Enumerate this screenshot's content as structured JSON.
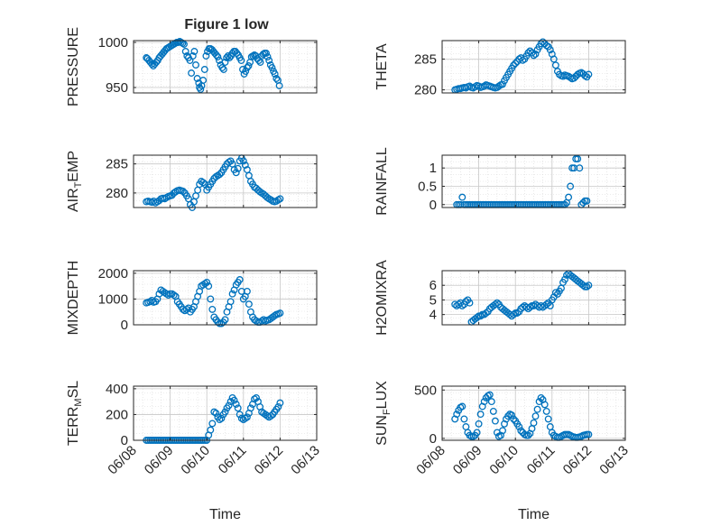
{
  "figure": {
    "title": "Figure 1 low"
  },
  "style": {
    "marker_color": "#0072BD",
    "axis_color": "#262626",
    "grid_color": "#d9d9d9"
  },
  "chart_data": [
    {
      "type": "scatter",
      "ylabel": "PRESSURE",
      "ylim": [
        944,
        1002
      ],
      "yticks": [
        950,
        1000
      ],
      "ytick_labels": [
        "950",
        "1000"
      ],
      "xlim": [
        0,
        5
      ],
      "grid": true,
      "x": [
        0.35,
        0.38,
        0.42,
        0.46,
        0.5,
        0.54,
        0.58,
        0.62,
        0.66,
        0.7,
        0.74,
        0.78,
        0.82,
        0.86,
        0.9,
        0.94,
        0.98,
        1.02,
        1.06,
        1.1,
        1.14,
        1.18,
        1.22,
        1.26,
        1.3,
        1.34,
        1.38,
        1.42,
        1.46,
        1.5,
        1.54,
        1.58,
        1.62,
        1.66,
        1.7,
        1.74,
        1.78,
        1.8,
        1.83,
        1.86,
        1.9,
        1.94,
        1.98,
        2.02,
        2.06,
        2.1,
        2.14,
        2.18,
        2.22,
        2.26,
        2.3,
        2.34,
        2.38,
        2.42,
        2.46,
        2.5,
        2.54,
        2.58,
        2.62,
        2.66,
        2.7,
        2.74,
        2.78,
        2.82,
        2.86,
        2.9,
        2.94,
        2.98,
        3.02,
        3.06,
        3.1,
        3.14,
        3.18,
        3.22,
        3.26,
        3.3,
        3.34,
        3.38,
        3.42,
        3.46,
        3.5,
        3.54,
        3.58,
        3.62,
        3.66,
        3.7,
        3.74,
        3.78,
        3.82,
        3.86,
        3.9,
        3.94,
        3.98
      ],
      "y": [
        983,
        982,
        980,
        978,
        976,
        974,
        976,
        978,
        980,
        983,
        985,
        987,
        989,
        991,
        993,
        994,
        995,
        996,
        997,
        998,
        999,
        1000,
        1000,
        1001,
        1000,
        999,
        998,
        990,
        985,
        983,
        980,
        966,
        985,
        990,
        975,
        960,
        955,
        950,
        948,
        952,
        958,
        970,
        985,
        990,
        993,
        993,
        992,
        990,
        988,
        986,
        984,
        980,
        975,
        972,
        970,
        978,
        983,
        985,
        983,
        985,
        988,
        990,
        990,
        988,
        986,
        983,
        980,
        970,
        965,
        968,
        972,
        974,
        978,
        984,
        985,
        986,
        985,
        982,
        980,
        978,
        985,
        987,
        988,
        988,
        984,
        980,
        975,
        972,
        968,
        965,
        960,
        958,
        952
      ]
    },
    {
      "type": "scatter",
      "ylabel": "THETA",
      "ylim": [
        279.5,
        288
      ],
      "yticks": [
        280,
        285
      ],
      "ytick_labels": [
        "280",
        "285"
      ],
      "xlim": [
        0,
        5
      ],
      "grid": true,
      "x": [
        0.35,
        0.4,
        0.45,
        0.5,
        0.55,
        0.6,
        0.65,
        0.7,
        0.75,
        0.8,
        0.85,
        0.9,
        0.95,
        1.0,
        1.05,
        1.1,
        1.15,
        1.2,
        1.25,
        1.3,
        1.35,
        1.4,
        1.45,
        1.5,
        1.55,
        1.6,
        1.65,
        1.7,
        1.75,
        1.8,
        1.85,
        1.9,
        1.95,
        2.0,
        2.05,
        2.1,
        2.15,
        2.2,
        2.25,
        2.3,
        2.35,
        2.4,
        2.45,
        2.5,
        2.55,
        2.6,
        2.65,
        2.7,
        2.75,
        2.8,
        2.85,
        2.9,
        2.95,
        3.0,
        3.05,
        3.1,
        3.15,
        3.2,
        3.25,
        3.3,
        3.35,
        3.4,
        3.45,
        3.5,
        3.55,
        3.6,
        3.65,
        3.7,
        3.75,
        3.8,
        3.85,
        3.9,
        3.95,
        4.0
      ],
      "y": [
        280.0,
        280.1,
        280.2,
        280.2,
        280.3,
        280.4,
        280.3,
        280.5,
        280.6,
        280.4,
        280.3,
        280.5,
        280.7,
        280.6,
        280.4,
        280.5,
        280.6,
        280.8,
        280.7,
        280.6,
        280.5,
        280.4,
        280.3,
        280.4,
        280.6,
        280.8,
        280.9,
        281.5,
        282.0,
        282.5,
        283.0,
        283.5,
        284.0,
        284.3,
        284.6,
        285.0,
        285.2,
        284.8,
        285.0,
        285.5,
        286.0,
        286.3,
        286.0,
        285.6,
        285.8,
        286.5,
        287.0,
        287.5,
        287.8,
        287.5,
        287.2,
        287.0,
        286.5,
        285.8,
        285.0,
        284.0,
        283.0,
        282.5,
        282.3,
        282.2,
        282.4,
        282.3,
        282.2,
        282.0,
        281.8,
        281.9,
        282.2,
        282.5,
        282.7,
        282.8,
        282.6,
        282.3,
        282.1,
        282.5
      ]
    },
    {
      "type": "scatter",
      "ylabel": "AIR_TEMP",
      "ylim": [
        277.5,
        286.5
      ],
      "yticks": [
        280,
        285
      ],
      "ytick_labels": [
        "280",
        "285"
      ],
      "xlim": [
        0,
        5
      ],
      "grid": true,
      "x": [
        0.35,
        0.4,
        0.45,
        0.5,
        0.55,
        0.6,
        0.65,
        0.7,
        0.75,
        0.8,
        0.85,
        0.9,
        0.95,
        1.0,
        1.05,
        1.1,
        1.15,
        1.2,
        1.25,
        1.3,
        1.35,
        1.4,
        1.45,
        1.5,
        1.55,
        1.6,
        1.65,
        1.7,
        1.75,
        1.8,
        1.85,
        1.9,
        1.95,
        2.0,
        2.05,
        2.1,
        2.15,
        2.2,
        2.25,
        2.3,
        2.35,
        2.4,
        2.45,
        2.5,
        2.55,
        2.6,
        2.65,
        2.7,
        2.75,
        2.8,
        2.85,
        2.9,
        2.95,
        3.0,
        3.05,
        3.1,
        3.15,
        3.2,
        3.25,
        3.3,
        3.35,
        3.4,
        3.45,
        3.5,
        3.55,
        3.6,
        3.65,
        3.7,
        3.75,
        3.8,
        3.85,
        3.9,
        3.95,
        4.0
      ],
      "y": [
        278.5,
        278.6,
        278.5,
        278.4,
        278.6,
        278.3,
        278.5,
        278.7,
        279.0,
        279.1,
        279.0,
        279.2,
        279.4,
        279.5,
        279.6,
        280.0,
        280.2,
        280.4,
        280.5,
        280.4,
        280.3,
        280.0,
        279.5,
        279.0,
        278.0,
        277.5,
        278.5,
        279.5,
        280.5,
        281.5,
        282.0,
        281.8,
        281.5,
        280.5,
        281.0,
        281.5,
        282.0,
        282.5,
        282.8,
        283.0,
        283.2,
        283.5,
        284.0,
        284.5,
        285.0,
        285.3,
        285.5,
        285.0,
        284.0,
        283.5,
        284.2,
        285.5,
        286.0,
        285.5,
        284.8,
        284.0,
        283.0,
        282.0,
        281.5,
        281.0,
        280.8,
        280.5,
        280.2,
        280.0,
        279.8,
        279.5,
        279.2,
        279.0,
        278.8,
        278.6,
        278.5,
        278.6,
        278.8,
        279.0
      ]
    },
    {
      "type": "scatter",
      "ylabel": "RAINFALL",
      "ylim": [
        -0.08,
        1.35
      ],
      "yticks": [
        0,
        0.5,
        1
      ],
      "ytick_labels": [
        "0",
        "0.5",
        "1"
      ],
      "xlim": [
        0,
        5
      ],
      "grid": true,
      "x": [
        0.4,
        0.45,
        0.5,
        0.55,
        0.6,
        0.65,
        0.7,
        0.75,
        0.8,
        0.85,
        0.9,
        0.95,
        1.0,
        1.05,
        1.1,
        1.15,
        1.2,
        1.25,
        1.3,
        1.35,
        1.4,
        1.45,
        1.5,
        1.55,
        1.6,
        1.65,
        1.7,
        1.75,
        1.8,
        1.85,
        1.9,
        1.95,
        2.0,
        2.05,
        2.1,
        2.15,
        2.2,
        2.25,
        2.3,
        2.35,
        2.4,
        2.45,
        2.5,
        2.55,
        2.6,
        2.65,
        2.7,
        2.75,
        2.8,
        2.85,
        2.9,
        2.95,
        3.0,
        3.05,
        3.1,
        3.15,
        3.2,
        3.25,
        3.3,
        3.35,
        3.4,
        3.45,
        3.5,
        3.55,
        3.6,
        3.65,
        3.7,
        3.75,
        3.8,
        3.85,
        3.9,
        3.95
      ],
      "y": [
        0,
        0,
        0,
        0.2,
        0,
        0,
        0,
        0,
        0,
        0,
        0,
        0,
        0,
        0,
        0,
        0,
        0,
        0,
        0,
        0,
        0,
        0,
        0,
        0,
        0,
        0,
        0,
        0,
        0,
        0,
        0,
        0,
        0,
        0,
        0,
        0,
        0,
        0,
        0,
        0,
        0,
        0,
        0,
        0,
        0,
        0,
        0,
        0,
        0,
        0,
        0,
        0,
        0,
        0,
        0,
        0,
        0,
        0,
        0,
        0,
        0.05,
        0.2,
        0.5,
        1.0,
        1.0,
        1.25,
        1.25,
        1.0,
        0,
        0.05,
        0.1,
        0.1
      ]
    },
    {
      "type": "scatter",
      "ylabel": "MIXDEPTH",
      "ylim": [
        0,
        2100
      ],
      "yticks": [
        0,
        1000,
        2000
      ],
      "ytick_labels": [
        "0",
        "1000",
        "2000"
      ],
      "xlim": [
        0,
        5
      ],
      "grid": true,
      "x": [
        0.35,
        0.4,
        0.45,
        0.5,
        0.55,
        0.6,
        0.65,
        0.7,
        0.75,
        0.8,
        0.85,
        0.9,
        0.95,
        1.0,
        1.05,
        1.1,
        1.15,
        1.2,
        1.25,
        1.3,
        1.35,
        1.4,
        1.45,
        1.5,
        1.55,
        1.6,
        1.65,
        1.7,
        1.75,
        1.8,
        1.85,
        1.9,
        1.95,
        2.0,
        2.05,
        2.1,
        2.15,
        2.2,
        2.25,
        2.3,
        2.35,
        2.4,
        2.45,
        2.5,
        2.55,
        2.6,
        2.65,
        2.7,
        2.75,
        2.8,
        2.85,
        2.9,
        2.95,
        3.0,
        3.05,
        3.1,
        3.15,
        3.2,
        3.25,
        3.3,
        3.35,
        3.4,
        3.45,
        3.5,
        3.55,
        3.6,
        3.65,
        3.7,
        3.75,
        3.8,
        3.85,
        3.9,
        3.95,
        4.0
      ],
      "y": [
        850,
        870,
        900,
        950,
        880,
        900,
        1000,
        1200,
        1350,
        1300,
        1250,
        1200,
        1150,
        1200,
        1200,
        1150,
        1100,
        900,
        800,
        700,
        600,
        550,
        600,
        650,
        500,
        600,
        700,
        900,
        1100,
        1300,
        1500,
        1550,
        1600,
        1650,
        1500,
        1000,
        600,
        300,
        200,
        100,
        50,
        50,
        100,
        200,
        500,
        700,
        900,
        1200,
        1350,
        1550,
        1650,
        1750,
        1300,
        1000,
        1100,
        1300,
        800,
        500,
        300,
        200,
        150,
        100,
        100,
        150,
        200,
        150,
        180,
        200,
        250,
        300,
        350,
        400,
        420,
        450
      ]
    },
    {
      "type": "scatter",
      "ylabel": "H2OMIXRA",
      "ylim": [
        3.3,
        7.0
      ],
      "yticks": [
        4,
        5,
        6
      ],
      "ytick_labels": [
        "4",
        "5",
        "6"
      ],
      "xlim": [
        0,
        5
      ],
      "grid": true,
      "x": [
        0.35,
        0.4,
        0.45,
        0.5,
        0.55,
        0.6,
        0.65,
        0.7,
        0.75,
        0.8,
        0.85,
        0.9,
        0.95,
        1.0,
        1.05,
        1.1,
        1.15,
        1.2,
        1.25,
        1.3,
        1.35,
        1.4,
        1.45,
        1.5,
        1.55,
        1.6,
        1.65,
        1.7,
        1.75,
        1.8,
        1.85,
        1.9,
        1.95,
        2.0,
        2.05,
        2.1,
        2.15,
        2.2,
        2.25,
        2.3,
        2.35,
        2.4,
        2.45,
        2.5,
        2.55,
        2.6,
        2.65,
        2.7,
        2.75,
        2.8,
        2.85,
        2.9,
        2.95,
        3.0,
        3.05,
        3.1,
        3.15,
        3.2,
        3.25,
        3.3,
        3.35,
        3.4,
        3.45,
        3.5,
        3.55,
        3.6,
        3.65,
        3.7,
        3.75,
        3.8,
        3.85,
        3.9,
        3.95,
        4.0
      ],
      "y": [
        4.7,
        4.6,
        4.7,
        4.8,
        4.6,
        4.7,
        4.9,
        5.0,
        4.8,
        3.5,
        3.6,
        3.7,
        3.8,
        3.9,
        3.9,
        4.0,
        4.0,
        4.1,
        4.2,
        4.4,
        4.5,
        4.6,
        4.7,
        4.8,
        4.7,
        4.5,
        4.4,
        4.3,
        4.2,
        4.1,
        4.0,
        3.9,
        4.0,
        4.1,
        4.1,
        4.2,
        4.4,
        4.5,
        4.6,
        4.5,
        4.4,
        4.5,
        4.6,
        4.6,
        4.7,
        4.6,
        4.5,
        4.6,
        4.5,
        4.6,
        4.7,
        4.8,
        4.6,
        5.0,
        5.2,
        5.5,
        5.4,
        5.6,
        5.8,
        6.2,
        6.4,
        6.7,
        6.8,
        6.7,
        6.6,
        6.5,
        6.4,
        6.3,
        6.2,
        6.1,
        6.0,
        5.9,
        5.9,
        6.0
      ]
    },
    {
      "type": "scatter",
      "ylabel": "TERR_MSL",
      "ylim": [
        0,
        420
      ],
      "yticks": [
        0,
        200,
        400
      ],
      "ytick_labels": [
        "0",
        "200",
        "400"
      ],
      "xlim": [
        0,
        5
      ],
      "grid": true,
      "xticks": [
        0,
        1,
        2,
        3,
        4,
        5
      ],
      "xtick_labels": [
        "06/08",
        "06/09",
        "06/10",
        "06/11",
        "06/12",
        "06/13"
      ],
      "xlabel": "Time",
      "x": [
        0.35,
        0.4,
        0.45,
        0.5,
        0.55,
        0.6,
        0.65,
        0.7,
        0.75,
        0.8,
        0.85,
        0.9,
        0.95,
        1.0,
        1.05,
        1.1,
        1.15,
        1.2,
        1.25,
        1.3,
        1.35,
        1.4,
        1.45,
        1.5,
        1.55,
        1.6,
        1.65,
        1.7,
        1.75,
        1.8,
        1.85,
        1.9,
        1.95,
        2.0,
        2.05,
        2.1,
        2.15,
        2.2,
        2.25,
        2.3,
        2.35,
        2.4,
        2.45,
        2.5,
        2.55,
        2.6,
        2.65,
        2.7,
        2.75,
        2.8,
        2.85,
        2.9,
        2.95,
        3.0,
        3.05,
        3.1,
        3.15,
        3.2,
        3.25,
        3.3,
        3.35,
        3.4,
        3.45,
        3.5,
        3.55,
        3.6,
        3.65,
        3.7,
        3.75,
        3.8,
        3.85,
        3.9,
        3.95,
        4.0
      ],
      "y": [
        0,
        0,
        0,
        0,
        0,
        0,
        0,
        0,
        0,
        0,
        0,
        0,
        0,
        0,
        0,
        0,
        0,
        0,
        0,
        0,
        0,
        0,
        0,
        0,
        0,
        0,
        0,
        0,
        0,
        0,
        0,
        0,
        0,
        0,
        40,
        80,
        130,
        220,
        210,
        180,
        160,
        170,
        200,
        220,
        250,
        270,
        300,
        330,
        310,
        280,
        250,
        200,
        170,
        160,
        170,
        180,
        210,
        250,
        280,
        320,
        330,
        300,
        260,
        220,
        210,
        200,
        190,
        180,
        190,
        200,
        220,
        240,
        260,
        290
      ]
    },
    {
      "type": "scatter",
      "ylabel": "SUN_FLUX",
      "ylim": [
        -20,
        540
      ],
      "yticks": [
        0,
        500
      ],
      "ytick_labels": [
        "0",
        "500"
      ],
      "xlim": [
        0,
        5
      ],
      "grid": true,
      "xticks": [
        0,
        1,
        2,
        3,
        4,
        5
      ],
      "xtick_labels": [
        "06/08",
        "06/09",
        "06/10",
        "06/11",
        "06/12",
        "06/13"
      ],
      "xlabel": "Time",
      "x": [
        0.35,
        0.4,
        0.45,
        0.5,
        0.55,
        0.6,
        0.65,
        0.7,
        0.75,
        0.8,
        0.85,
        0.9,
        0.95,
        1.0,
        1.05,
        1.1,
        1.15,
        1.2,
        1.25,
        1.3,
        1.35,
        1.4,
        1.45,
        1.5,
        1.55,
        1.6,
        1.65,
        1.7,
        1.75,
        1.8,
        1.85,
        1.9,
        1.95,
        2.0,
        2.05,
        2.1,
        2.15,
        2.2,
        2.25,
        2.3,
        2.35,
        2.4,
        2.45,
        2.5,
        2.55,
        2.6,
        2.65,
        2.7,
        2.75,
        2.8,
        2.85,
        2.9,
        2.95,
        3.0,
        3.05,
        3.1,
        3.15,
        3.2,
        3.25,
        3.3,
        3.35,
        3.4,
        3.45,
        3.5,
        3.55,
        3.6,
        3.65,
        3.7,
        3.75,
        3.8,
        3.85,
        3.9,
        3.95,
        4.0
      ],
      "y": [
        200,
        250,
        290,
        320,
        330,
        200,
        120,
        60,
        30,
        20,
        20,
        30,
        60,
        150,
        250,
        330,
        380,
        420,
        440,
        450,
        380,
        280,
        180,
        60,
        20,
        30,
        80,
        150,
        200,
        230,
        250,
        240,
        200,
        180,
        150,
        120,
        80,
        60,
        40,
        30,
        30,
        50,
        100,
        160,
        230,
        300,
        380,
        420,
        400,
        350,
        280,
        200,
        120,
        60,
        30,
        20,
        10,
        10,
        20,
        30,
        40,
        40,
        40,
        30,
        20,
        15,
        10,
        10,
        15,
        20,
        30,
        35,
        40,
        40
      ]
    }
  ]
}
